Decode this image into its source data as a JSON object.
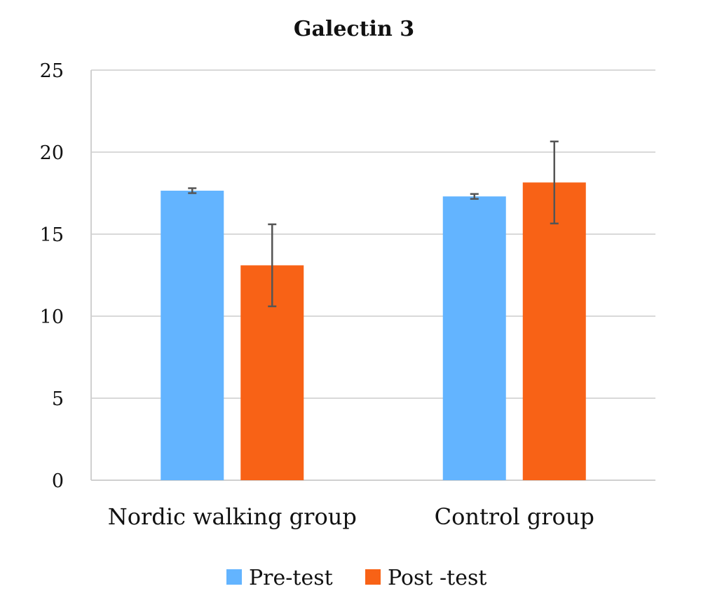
{
  "chart_data": {
    "type": "bar",
    "title": "Galectin 3",
    "categories": [
      "Nordic walking group",
      "Control group"
    ],
    "series": [
      {
        "name": "Pre-test",
        "color": "#63b4ff",
        "values": [
          17.65,
          17.3
        ],
        "errors": [
          0.15,
          0.15
        ]
      },
      {
        "name": "Post -test",
        "color": "#f86216",
        "values": [
          13.1,
          18.15
        ],
        "errors": [
          2.5,
          2.5
        ]
      }
    ],
    "ylim": [
      0,
      25
    ],
    "yticks": [
      0,
      5,
      10,
      15,
      20,
      25
    ],
    "ytick_labels": [
      "0",
      "5",
      "10",
      "15",
      "20",
      "25"
    ],
    "xlabel": "",
    "ylabel": "",
    "grid": true,
    "legend_position": "bottom"
  }
}
